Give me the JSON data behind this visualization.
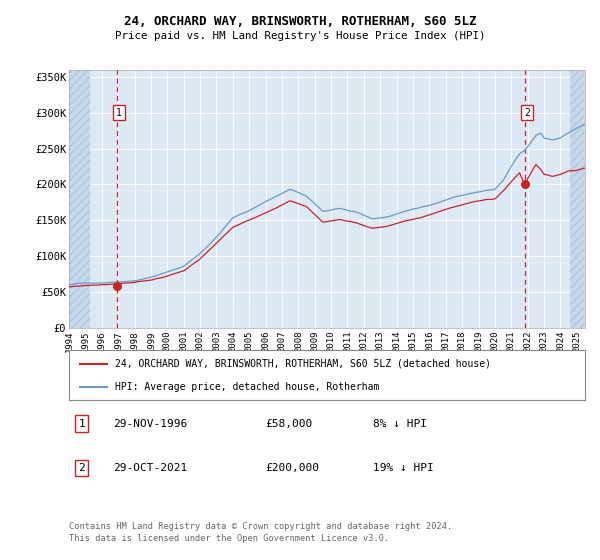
{
  "title": "24, ORCHARD WAY, BRINSWORTH, ROTHERHAM, S60 5LZ",
  "subtitle": "Price paid vs. HM Land Registry's House Price Index (HPI)",
  "legend_line1": "24, ORCHARD WAY, BRINSWORTH, ROTHERHAM, S60 5LZ (detached house)",
  "legend_line2": "HPI: Average price, detached house, Rotherham",
  "table_row1": [
    "1",
    "29-NOV-1996",
    "£58,000",
    "8% ↓ HPI"
  ],
  "table_row2": [
    "2",
    "29-OCT-2021",
    "£200,000",
    "19% ↓ HPI"
  ],
  "footnote": "Contains HM Land Registry data © Crown copyright and database right 2024.\nThis data is licensed under the Open Government Licence v3.0.",
  "sale1_date": 1996.91,
  "sale1_price": 58000,
  "sale2_date": 2021.83,
  "sale2_price": 200000,
  "hpi_color": "#6699cc",
  "price_color": "#cc2222",
  "background_plot": "#dce9f5",
  "background_hatch": "#c8d8ea",
  "ylim": [
    0,
    360000
  ],
  "xlim_start": 1994.0,
  "xlim_end": 2025.5,
  "ylabel_ticks": [
    0,
    50000,
    100000,
    150000,
    200000,
    250000,
    300000,
    350000
  ],
  "ylabel_labels": [
    "£0",
    "£50K",
    "£100K",
    "£150K",
    "£200K",
    "£250K",
    "£300K",
    "£350K"
  ],
  "xtick_years": [
    1994,
    1995,
    1996,
    1997,
    1998,
    1999,
    2000,
    2001,
    2002,
    2003,
    2004,
    2005,
    2006,
    2007,
    2008,
    2009,
    2010,
    2011,
    2012,
    2013,
    2014,
    2015,
    2016,
    2017,
    2018,
    2019,
    2020,
    2021,
    2022,
    2023,
    2024,
    2025
  ],
  "hatch_left_end": 1995.3,
  "hatch_right_start": 2024.6
}
